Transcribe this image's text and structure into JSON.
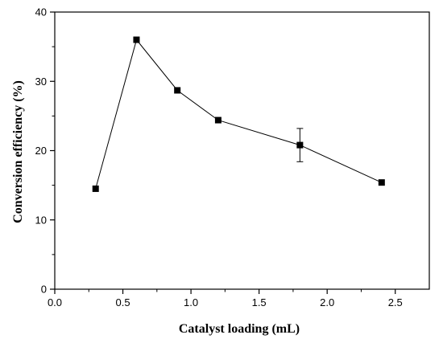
{
  "chart_data": {
    "type": "scatter",
    "title": "",
    "xlabel": "Catalyst loading (mL)",
    "ylabel": "Conversion efficiency (%)",
    "xlim": [
      0.0,
      2.75
    ],
    "ylim": [
      0,
      40
    ],
    "x_ticks": [
      0.0,
      0.5,
      1.0,
      1.5,
      2.0,
      2.5
    ],
    "x_tick_labels": [
      "0.0",
      "0.5",
      "1.0",
      "1.5",
      "2.0",
      "2.5"
    ],
    "y_ticks": [
      0,
      10,
      20,
      30,
      40
    ],
    "y_tick_labels": [
      "0",
      "10",
      "20",
      "30",
      "40"
    ],
    "grid": false,
    "legend": "none",
    "series": [
      {
        "x": [
          0.3,
          0.6,
          0.9,
          1.2,
          1.8,
          2.4
        ],
        "y": [
          14.5,
          36.0,
          28.7,
          24.4,
          20.8,
          15.4
        ],
        "error": [
          0,
          0,
          0,
          0,
          2.4,
          0
        ],
        "line": true,
        "marker": "square",
        "color": "#000000"
      }
    ]
  }
}
